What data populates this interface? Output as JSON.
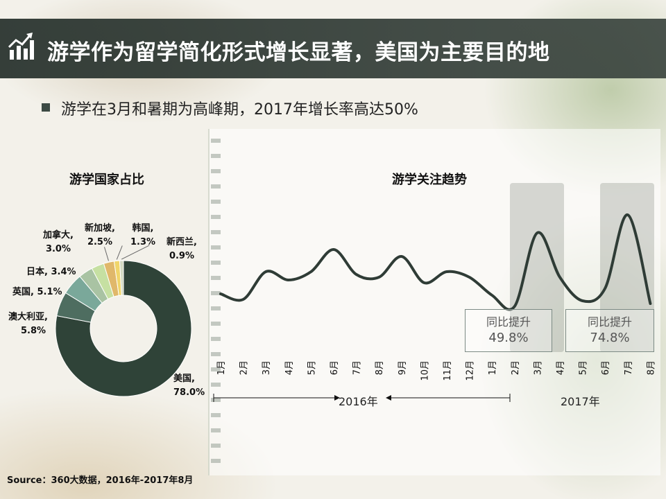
{
  "header": {
    "title": "游学作为留学简化形式增长显著，美国为主要目的地",
    "icon": "bar-chart-growth-icon"
  },
  "bullet": "游学在3月和暑期为高峰期，2017年增长率高达50%",
  "colors": {
    "title_bar": "#333d38",
    "line": "#2f3c36",
    "usa": "#2f4338",
    "australia": "#4e6d60",
    "uk": "#7aa89a",
    "japan": "#a9c3a3",
    "canada": "#c6e0a2",
    "singapore": "#e0b86a",
    "korea": "#f0d56a",
    "newzealand": "#d3d9c2"
  },
  "chart_data": [
    {
      "type": "pie",
      "title": "游学国家占比",
      "style": "donut",
      "slices": [
        {
          "name": "美国",
          "value": 78.0,
          "label": "美国,",
          "pct": "78.0%"
        },
        {
          "name": "澳大利亚",
          "value": 5.8,
          "label": "澳大利亚,",
          "pct": "5.8%"
        },
        {
          "name": "英国",
          "value": 5.1,
          "label": "英国, 5.1%",
          "pct": ""
        },
        {
          "name": "日本",
          "value": 3.4,
          "label": "日本, 3.4%",
          "pct": ""
        },
        {
          "name": "加拿大",
          "value": 3.0,
          "label": "加拿大,",
          "pct": "3.0%"
        },
        {
          "name": "新加坡",
          "value": 2.5,
          "label": "新加坡,",
          "pct": "2.5%"
        },
        {
          "name": "韩国",
          "value": 1.3,
          "label": "韩国,",
          "pct": "1.3%"
        },
        {
          "name": "新西兰",
          "value": 0.9,
          "label": "新西兰,",
          "pct": "0.9%"
        }
      ]
    },
    {
      "type": "line",
      "title": "游学关注趋势",
      "categories": [
        "1月",
        "2月",
        "3月",
        "4月",
        "5月",
        "6月",
        "7月",
        "8月",
        "9月",
        "10月",
        "11月",
        "12月",
        "1月",
        "2月",
        "3月",
        "4月",
        "5月",
        "6月",
        "7月",
        "8月"
      ],
      "values": [
        28,
        24,
        44,
        38,
        44,
        60,
        42,
        40,
        55,
        36,
        44,
        40,
        27,
        19,
        72,
        40,
        23,
        32,
        85,
        21
      ],
      "ylim": [
        0,
        100
      ],
      "year_labels": [
        "2016年",
        "2017年"
      ],
      "annotations": [
        {
          "text": "同比提升",
          "value": "49.8%",
          "month_index": 14
        },
        {
          "text": "同比提升",
          "value": "74.8%",
          "month_index": 18
        }
      ]
    }
  ],
  "source": "Source：360大数据，2016年-2017年8月"
}
